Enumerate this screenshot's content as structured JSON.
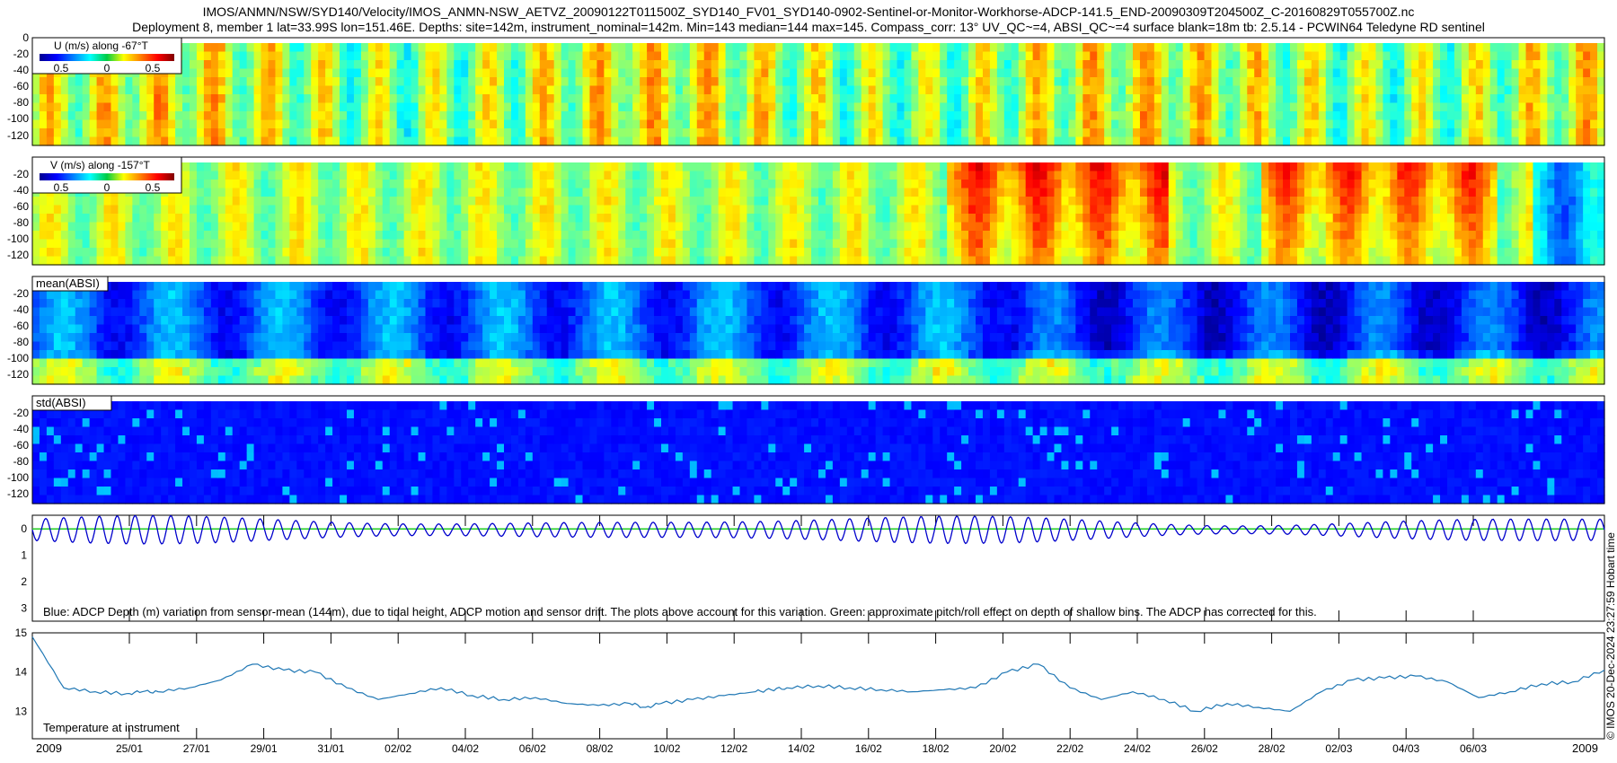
{
  "header": {
    "line1": "IMOS/ANMN/NSW/SYD140/Velocity/IMOS_ANMN-NSW_AETVZ_20090122T011500Z_SYD140_FV01_SYD140-0902-Sentinel-or-Monitor-Workhorse-ADCP-141.5_END-20090309T204500Z_C-20160829T055700Z.nc",
    "line2": "Deployment 8, member 1 lat=33.99S lon=151.46E. Depths: site=142m, instrument_nominal=142m. Min=143 median=144 max=145. Compass_corr: 13° UV_QC~=4, ABSI_QC~=4 surface blank=18m tb: 2.5.14 - PCWIN64 Teledyne RD sentinel"
  },
  "side_label": "© IMOS 20-Dec-2024 23:27:59 Hobart time",
  "colors": {
    "line_blue": "#0000cc",
    "line_green": "#22cc22",
    "temp_line": "#1f77b4"
  },
  "chart_data": [
    {
      "type": "heatmap",
      "name": "u-velocity",
      "label": "U (m/s) along -67°T",
      "colorbar_ticks": [
        "0.5",
        "0",
        "0.5"
      ],
      "y_ticks": [
        "0",
        "-20",
        "-40",
        "-60",
        "-80",
        "-100",
        "-120"
      ],
      "ylim": [
        -130,
        0
      ],
      "bias": 0.05,
      "amplitude": 0.35
    },
    {
      "type": "heatmap",
      "name": "v-velocity",
      "label": "V (m/s) along -157°T",
      "colorbar_ticks": [
        "0.5",
        "0",
        "0.5"
      ],
      "y_ticks": [
        "0",
        "-20",
        "-40",
        "-60",
        "-80",
        "-100",
        "-120"
      ],
      "ylim": [
        -130,
        0
      ],
      "bias": 0.1,
      "amplitude": 0.35
    },
    {
      "type": "heatmap",
      "name": "mean-absi",
      "label": "mean(ABSI)",
      "y_ticks": [
        "-20",
        "-40",
        "-60",
        "-80",
        "-100",
        "-120"
      ],
      "ylim": [
        -130,
        0
      ]
    },
    {
      "type": "heatmap",
      "name": "std-absi",
      "label": "std(ABSI)",
      "y_ticks": [
        "-20",
        "-40",
        "-60",
        "-80",
        "-100",
        "-120"
      ],
      "ylim": [
        -130,
        0
      ]
    },
    {
      "type": "line",
      "name": "adcp-depth",
      "y_ticks": [
        "0",
        "1",
        "2",
        "3"
      ],
      "ylim": [
        -0.5,
        3.5
      ],
      "series": [
        {
          "name": "ADCP depth variation",
          "color": "#0000cc",
          "mean": 0.05,
          "amplitude": 0.45,
          "cycles": 88
        },
        {
          "name": "pitch/roll effect",
          "color": "#22cc22",
          "value": 0.02
        }
      ],
      "annotation": "Blue: ADCP Depth (m) variation from sensor-mean (144m), due to tidal height, ADCP motion and sensor drift. The plots above account for this variation. Green: approximate pitch/roll effect on depth of shallow bins. The ADCP has corrected for this."
    },
    {
      "type": "line",
      "name": "temperature",
      "y_ticks": [
        "15",
        "14",
        "13"
      ],
      "ylim": [
        12.3,
        15.0
      ],
      "x": [
        0,
        2,
        4,
        6,
        7,
        8,
        10,
        12,
        14,
        16,
        18,
        20,
        22,
        24,
        26,
        28,
        30,
        32,
        34,
        36,
        38,
        39,
        40,
        42,
        44,
        46,
        47,
        48,
        50,
        52,
        54,
        56,
        58,
        60,
        62,
        64,
        66,
        68,
        70,
        72,
        74,
        76,
        78,
        80,
        82,
        84,
        86,
        88,
        90,
        92,
        94,
        96,
        98,
        100
      ],
      "values": [
        14.9,
        13.6,
        13.5,
        13.45,
        13.5,
        13.5,
        13.6,
        13.8,
        14.2,
        14.05,
        14.0,
        13.6,
        13.3,
        13.45,
        13.6,
        13.4,
        13.3,
        13.35,
        13.2,
        13.15,
        13.2,
        13.1,
        13.2,
        13.3,
        13.4,
        13.5,
        13.55,
        13.6,
        13.65,
        13.6,
        13.55,
        13.5,
        13.55,
        13.6,
        14.0,
        14.2,
        13.6,
        13.3,
        13.5,
        13.3,
        13.0,
        13.2,
        13.1,
        13.0,
        13.5,
        13.8,
        13.85,
        13.9,
        13.75,
        13.35,
        13.5,
        13.7,
        13.75,
        14.05
      ],
      "annotation": "Temperature at instrument"
    }
  ],
  "x_axis": {
    "first_label": "2009",
    "last_label": "2009",
    "date_labels": [
      "25/01",
      "27/01",
      "29/01",
      "31/01",
      "02/02",
      "04/02",
      "06/02",
      "08/02",
      "10/02",
      "12/02",
      "14/02",
      "16/02",
      "18/02",
      "20/02",
      "22/02",
      "24/02",
      "26/02",
      "28/02",
      "02/03",
      "04/03",
      "06/03"
    ]
  }
}
